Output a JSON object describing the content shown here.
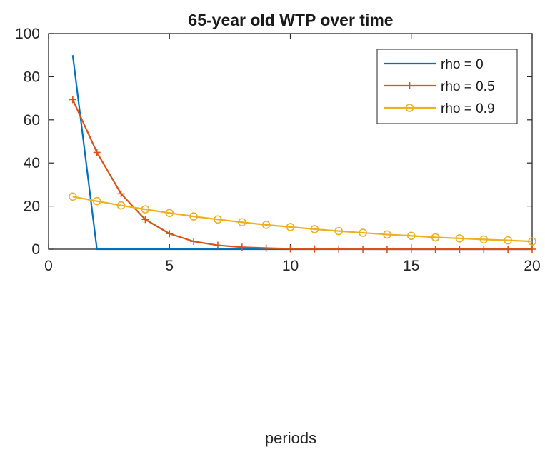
{
  "chart_data": {
    "type": "line",
    "title": "65-year old WTP over time",
    "xlabel": "periods",
    "ylabel": "",
    "xlim": [
      0,
      20
    ],
    "ylim": [
      0,
      100
    ],
    "xticks": [
      0,
      5,
      10,
      15,
      20
    ],
    "yticks": [
      0,
      20,
      40,
      60,
      80,
      100
    ],
    "grid": false,
    "legend_position": "top-right",
    "series": [
      {
        "name": "rho = 0",
        "color": "#0072BD",
        "marker": "none",
        "x": [
          1,
          2,
          3,
          4,
          5,
          6,
          7,
          8,
          9,
          10,
          11,
          12,
          13,
          14,
          15,
          16,
          17,
          18,
          19,
          20
        ],
        "y": [
          90,
          0,
          0,
          0,
          0,
          0,
          0,
          0,
          0,
          0,
          0,
          0,
          0,
          0,
          0,
          0,
          0,
          0,
          0,
          0
        ]
      },
      {
        "name": "rho = 0.5",
        "color": "#D95319",
        "marker": "plus",
        "x": [
          1,
          2,
          3,
          4,
          5,
          6,
          7,
          8,
          9,
          10,
          11,
          12,
          13,
          14,
          15,
          16,
          17,
          18,
          19,
          20
        ],
        "y": [
          69.4,
          44.9,
          25.7,
          13.8,
          7.2,
          3.6,
          1.8,
          0.9,
          0.5,
          0.2,
          0.1,
          0.05,
          0.03,
          0.01,
          0.01,
          0,
          0,
          0,
          0,
          0
        ]
      },
      {
        "name": "rho = 0.9",
        "color": "#EDB120",
        "marker": "circle",
        "x": [
          1,
          2,
          3,
          4,
          5,
          6,
          7,
          8,
          9,
          10,
          11,
          12,
          13,
          14,
          15,
          16,
          17,
          18,
          19,
          20
        ],
        "y": [
          24.4,
          22.3,
          20.3,
          18.5,
          16.8,
          15.2,
          13.8,
          12.5,
          11.3,
          10.3,
          9.3,
          8.4,
          7.6,
          6.8,
          6.2,
          5.5,
          5.0,
          4.5,
          4.1,
          3.6
        ]
      }
    ]
  }
}
